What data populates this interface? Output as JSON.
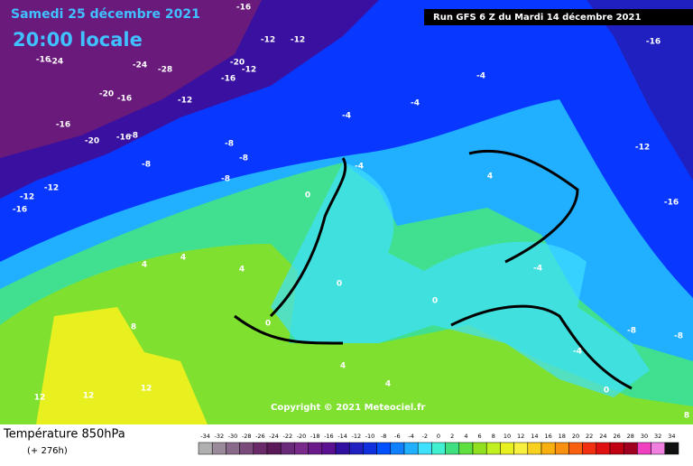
{
  "header": {
    "date": "Samedi 25 décembre 2021",
    "time": "20:00 locale",
    "run": "Run GFS 6 Z du Mardi 14 décembre 2021"
  },
  "copyright": "Copyright © 2021 Meteociel.fr",
  "legend": {
    "title": "Température 850hPa",
    "lead": "(+ 276h)",
    "values": [
      -34,
      -32,
      -30,
      -28,
      -26,
      -24,
      -22,
      -20,
      -18,
      -16,
      -14,
      -12,
      -10,
      -8,
      -6,
      -4,
      -2,
      0,
      2,
      4,
      6,
      8,
      10,
      12,
      14,
      16,
      18,
      20,
      22,
      24,
      26,
      28,
      30,
      32,
      34
    ],
    "colors": [
      "#b0b0b0",
      "#9a8a9a",
      "#8a6a8a",
      "#7a4a7a",
      "#6a2a6a",
      "#5a1a5a",
      "#6a2a7a",
      "#7a2a8a",
      "#6a1a8a",
      "#5a1090",
      "#3010a0",
      "#2020c0",
      "#1030e0",
      "#0050ff",
      "#1080ff",
      "#20b0ff",
      "#40e0ff",
      "#40f0d0",
      "#40e080",
      "#60e040",
      "#90e020",
      "#c0f020",
      "#e8f020",
      "#f8f040",
      "#f8d020",
      "#f8b010",
      "#f89010",
      "#f86010",
      "#f03010",
      "#e01010",
      "#c00010",
      "#a00020",
      "#f040c0",
      "#f080e0",
      "#101010"
    ]
  },
  "map_labels": [
    "-16",
    "-12",
    "-16",
    "-24",
    "-24",
    "-28",
    "-20",
    "-12",
    "-16",
    "-12",
    "-20",
    "-16",
    "-12",
    "-16",
    "-16",
    "-20",
    "-8",
    "-8",
    "-12",
    "-12",
    "-16",
    "-8",
    "-8",
    "-8",
    "-4",
    "-4",
    "-4",
    "-4",
    "-12",
    "-16",
    "-16",
    "0",
    "0",
    "0",
    "4",
    "4",
    "4",
    "8",
    "12",
    "12",
    "12",
    "4",
    "4",
    "0",
    "-4",
    "-8",
    "-8",
    "0",
    "-4",
    "4",
    "8"
  ]
}
